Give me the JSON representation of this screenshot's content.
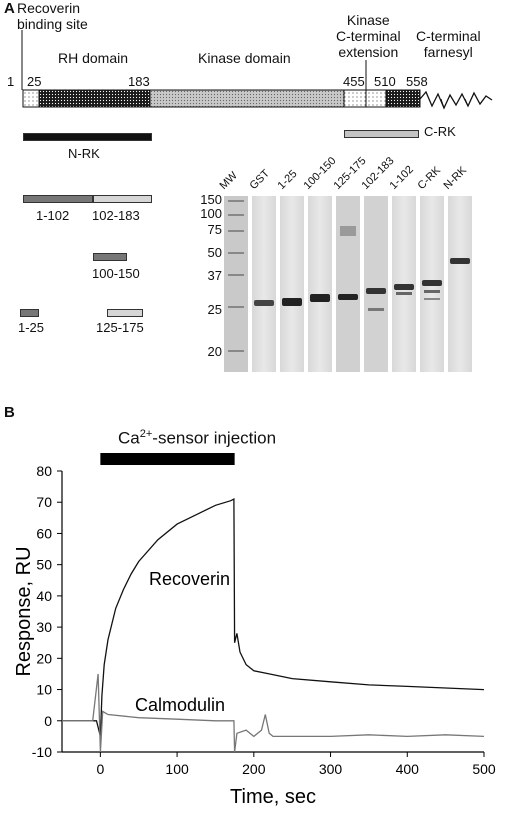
{
  "panel_a": {
    "letter": "A",
    "domains": {
      "recoverin_site": "Recoverin\nbinding site",
      "rh": "RH domain",
      "kinase": "Kinase domain",
      "kinase_ext": "Kinase\nC-terminal\nextension",
      "farnesyl": "C-terminal\nfarnesyl"
    },
    "positions": [
      "1",
      "25",
      "183",
      "455",
      "510",
      "558"
    ],
    "fragments": {
      "n_rk": "N-RK",
      "c_rk": "C-RK",
      "f1_102": "1-102",
      "f102_183": "102-183",
      "f100_150": "100-150",
      "f1_25": "1-25",
      "f125_175": "125-175"
    },
    "gel": {
      "lanes": [
        "MW",
        "GST",
        "1-25",
        "100-150",
        "125-175",
        "102-183",
        "1-102",
        "C-RK",
        "N-RK"
      ],
      "mw_markers": [
        "150",
        "100",
        "75",
        "50",
        "37",
        "25",
        "20"
      ]
    }
  },
  "panel_b": {
    "letter": "B",
    "injection_label_prefix": "Ca",
    "injection_label_sup": "2+",
    "injection_label_suffix": "-sensor injection",
    "curve_label_recoverin": "Recoverin",
    "curve_label_calmodulin": "Calmodulin"
  },
  "chart_data": {
    "type": "line",
    "xlabel": "Time, sec",
    "ylabel": "Response, RU",
    "xlim": [
      -50,
      500
    ],
    "ylim": [
      -10,
      80
    ],
    "xticks": [
      0,
      100,
      200,
      300,
      400,
      500
    ],
    "yticks": [
      -10,
      0,
      10,
      20,
      30,
      40,
      50,
      60,
      70,
      80
    ],
    "injection_interval": [
      0,
      175
    ],
    "series": [
      {
        "name": "Recoverin",
        "color": "#111111",
        "x": [
          -50,
          -20,
          -5,
          0,
          2,
          5,
          10,
          20,
          30,
          40,
          50,
          75,
          100,
          125,
          150,
          170,
          174,
          175,
          178,
          182,
          190,
          200,
          220,
          250,
          300,
          350,
          400,
          450,
          500
        ],
        "y": [
          0,
          0,
          0,
          -5,
          8,
          18,
          26,
          36,
          42,
          47,
          51,
          58,
          63,
          66,
          69,
          70.5,
          71,
          25,
          28,
          22,
          18,
          16,
          15,
          13.5,
          12.5,
          11.5,
          11,
          10.5,
          10
        ]
      },
      {
        "name": "Calmodulin",
        "color": "#777777",
        "x": [
          -50,
          -10,
          -3,
          0,
          3,
          10,
          50,
          100,
          150,
          174,
          175,
          178,
          190,
          200,
          210,
          215,
          220,
          225,
          250,
          300,
          350,
          400,
          450,
          500
        ],
        "y": [
          0,
          0,
          15,
          -10,
          3,
          2,
          1,
          0.5,
          0,
          0,
          -10,
          -4,
          -3,
          -5,
          -3,
          2,
          -4,
          -5,
          -5,
          -5,
          -4.5,
          -5,
          -4.5,
          -5
        ]
      }
    ]
  }
}
